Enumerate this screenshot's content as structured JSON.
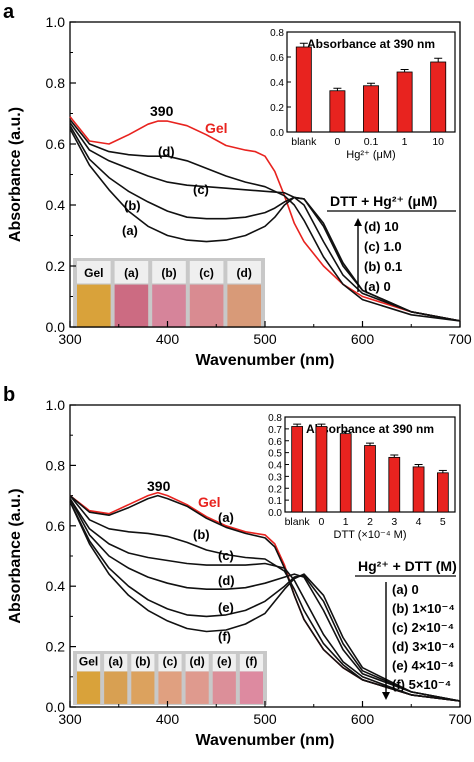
{
  "panels": [
    {
      "label": "a",
      "xlabel": "Wavenumber (nm)",
      "ylabel": "Absorbance (a.u.)",
      "xticks": [
        "300",
        "400",
        "500",
        "600",
        "700"
      ],
      "yticks": [
        "0.0",
        "0.2",
        "0.4",
        "0.6",
        "0.8",
        "1.0"
      ],
      "peak_label": "390",
      "gel_label": "Gel",
      "legend_title": "DTT + Hg²⁺ (μM)",
      "legend_entries": [
        "(d) 10",
        "(c) 1.0",
        "(b) 0.1",
        "(a) 0"
      ],
      "photo_labels": [
        "Gel",
        "(a)",
        "(b)",
        "(c)",
        "(d)"
      ],
      "curve_labels": [
        "(a)",
        "(b)",
        "(c)",
        "(d)"
      ],
      "inset": {
        "title": "Absorbance at 390 nm",
        "xlabel": "Hg²⁺ (μM)",
        "categories": [
          "blank",
          "0",
          "0.1",
          "1",
          "10"
        ],
        "yticks": [
          "0.0",
          "0.2",
          "0.4",
          "0.6",
          "0.8"
        ]
      }
    },
    {
      "label": "b",
      "xlabel": "Wavenumber (nm)",
      "ylabel": "Absorbance (a.u.)",
      "xticks": [
        "300",
        "400",
        "500",
        "600",
        "700"
      ],
      "yticks": [
        "0.0",
        "0.2",
        "0.4",
        "0.6",
        "0.8",
        "1.0"
      ],
      "peak_label": "390",
      "gel_label": "Gel",
      "legend_title": "Hg²⁺ + DTT (M)",
      "legend_entries": [
        "(a) 0",
        "(b) 1×10⁻⁴",
        "(c) 2×10⁻⁴",
        "(d) 3×10⁻⁴",
        "(e) 4×10⁻⁴",
        "(f) 5×10⁻⁴"
      ],
      "photo_labels": [
        "Gel",
        "(a)",
        "(b)",
        "(c)",
        "(d)",
        "(e)",
        "(f)"
      ],
      "curve_labels": [
        "(a)",
        "(b)",
        "(c)",
        "(d)",
        "(e)",
        "(f)"
      ],
      "inset": {
        "title": "Absorbance at 390 nm",
        "xlabel": "DTT (×10⁻⁴ M)",
        "categories": [
          "blank",
          "0",
          "1",
          "2",
          "3",
          "4",
          "5"
        ],
        "yticks": [
          "0.0",
          "0.1",
          "0.2",
          "0.3",
          "0.4",
          "0.5",
          "0.6",
          "0.7",
          "0.8"
        ]
      }
    }
  ],
  "colors": {
    "gel_curve": "#e8231f",
    "curves": "#111111",
    "bars": "#e8231f",
    "photo_gel": "#d9a23a",
    "photo_samples_a": [
      "#cc6b82",
      "#d6849a",
      "#d98b91",
      "#d89a78"
    ],
    "photo_samples_b": [
      "#d8a052",
      "#dca25e",
      "#e0a080",
      "#df9a8e",
      "#dc8f99",
      "#dd8aa0"
    ]
  },
  "chart_data": [
    {
      "type": "line",
      "title": "",
      "xlabel": "Wavenumber (nm)",
      "ylabel": "Absorbance (a.u.)",
      "xlim": [
        300,
        700
      ],
      "ylim": [
        0,
        1.0
      ],
      "series": [
        {
          "name": "Gel",
          "x": [
            300,
            320,
            340,
            360,
            380,
            390,
            400,
            420,
            440,
            460,
            480,
            490,
            500,
            510,
            520,
            530,
            540,
            560,
            580,
            600,
            650,
            700
          ],
          "y": [
            0.69,
            0.61,
            0.6,
            0.63,
            0.665,
            0.675,
            0.675,
            0.66,
            0.63,
            0.595,
            0.58,
            0.575,
            0.56,
            0.51,
            0.43,
            0.34,
            0.28,
            0.2,
            0.14,
            0.1,
            0.05,
            0.02
          ]
        },
        {
          "name": "(d)",
          "x": [
            300,
            320,
            340,
            360,
            380,
            400,
            420,
            440,
            460,
            480,
            500,
            520,
            530,
            540,
            560,
            580,
            600,
            650,
            700
          ],
          "y": [
            0.68,
            0.6,
            0.575,
            0.565,
            0.56,
            0.56,
            0.545,
            0.52,
            0.495,
            0.475,
            0.46,
            0.43,
            0.4,
            0.35,
            0.23,
            0.14,
            0.09,
            0.04,
            0.02
          ]
        },
        {
          "name": "(c)",
          "x": [
            300,
            320,
            340,
            360,
            380,
            400,
            420,
            440,
            460,
            480,
            500,
            520,
            530,
            540,
            560,
            580,
            600,
            650,
            700
          ],
          "y": [
            0.67,
            0.58,
            0.545,
            0.52,
            0.495,
            0.475,
            0.465,
            0.46,
            0.455,
            0.45,
            0.445,
            0.44,
            0.425,
            0.4,
            0.28,
            0.17,
            0.11,
            0.05,
            0.02
          ]
        },
        {
          "name": "(b)",
          "x": [
            300,
            320,
            340,
            360,
            380,
            400,
            420,
            440,
            460,
            480,
            500,
            510,
            520,
            530,
            540,
            560,
            580,
            600,
            650,
            700
          ],
          "y": [
            0.66,
            0.55,
            0.49,
            0.445,
            0.41,
            0.38,
            0.36,
            0.355,
            0.355,
            0.36,
            0.375,
            0.39,
            0.41,
            0.425,
            0.42,
            0.33,
            0.2,
            0.12,
            0.05,
            0.02
          ]
        },
        {
          "name": "(a)",
          "x": [
            300,
            320,
            340,
            360,
            380,
            400,
            420,
            440,
            460,
            480,
            500,
            510,
            520,
            530,
            540,
            560,
            580,
            600,
            650,
            700
          ],
          "y": [
            0.65,
            0.53,
            0.45,
            0.38,
            0.33,
            0.3,
            0.285,
            0.28,
            0.285,
            0.3,
            0.33,
            0.36,
            0.4,
            0.425,
            0.42,
            0.34,
            0.21,
            0.12,
            0.05,
            0.02
          ]
        }
      ],
      "inset": {
        "type": "bar",
        "title": "Absorbance at 390 nm",
        "xlabel": "Hg²⁺ (μM)",
        "categories": [
          "blank",
          "0",
          "0.1",
          "1",
          "10"
        ],
        "values": [
          0.68,
          0.33,
          0.37,
          0.48,
          0.56
        ],
        "errors": [
          0.03,
          0.02,
          0.02,
          0.02,
          0.03
        ],
        "ylim": [
          0,
          0.8
        ]
      }
    },
    {
      "type": "line",
      "title": "",
      "xlabel": "Wavenumber (nm)",
      "ylabel": "Absorbance (a.u.)",
      "xlim": [
        300,
        700
      ],
      "ylim": [
        0,
        1.0
      ],
      "series": [
        {
          "name": "Gel",
          "x": [
            300,
            320,
            340,
            360,
            380,
            390,
            400,
            420,
            440,
            460,
            480,
            500,
            510,
            520,
            530,
            540,
            560,
            580,
            600,
            650,
            700
          ],
          "y": [
            0.7,
            0.65,
            0.64,
            0.67,
            0.7,
            0.71,
            0.7,
            0.67,
            0.63,
            0.6,
            0.58,
            0.57,
            0.54,
            0.47,
            0.37,
            0.29,
            0.19,
            0.13,
            0.09,
            0.04,
            0.02
          ]
        },
        {
          "name": "(a)",
          "x": [
            300,
            320,
            340,
            360,
            380,
            390,
            400,
            420,
            440,
            460,
            480,
            500,
            510,
            520,
            530,
            540,
            560,
            580,
            600,
            650,
            700
          ],
          "y": [
            0.7,
            0.645,
            0.635,
            0.66,
            0.69,
            0.7,
            0.69,
            0.665,
            0.625,
            0.595,
            0.575,
            0.56,
            0.53,
            0.46,
            0.37,
            0.29,
            0.19,
            0.13,
            0.09,
            0.04,
            0.02
          ]
        },
        {
          "name": "(b)",
          "x": [
            300,
            320,
            340,
            360,
            380,
            400,
            420,
            440,
            460,
            480,
            500,
            520,
            530,
            540,
            560,
            580,
            600,
            650,
            700
          ],
          "y": [
            0.7,
            0.62,
            0.59,
            0.58,
            0.575,
            0.565,
            0.545,
            0.52,
            0.505,
            0.495,
            0.49,
            0.45,
            0.39,
            0.32,
            0.21,
            0.14,
            0.09,
            0.04,
            0.02
          ]
        },
        {
          "name": "(c)",
          "x": [
            300,
            320,
            340,
            360,
            380,
            400,
            420,
            440,
            460,
            480,
            500,
            520,
            530,
            540,
            560,
            580,
            600,
            650,
            700
          ],
          "y": [
            0.69,
            0.59,
            0.54,
            0.51,
            0.495,
            0.485,
            0.475,
            0.47,
            0.47,
            0.47,
            0.475,
            0.46,
            0.42,
            0.36,
            0.24,
            0.15,
            0.1,
            0.04,
            0.02
          ]
        },
        {
          "name": "(d)",
          "x": [
            300,
            320,
            340,
            360,
            380,
            400,
            420,
            440,
            460,
            480,
            500,
            520,
            530,
            540,
            560,
            580,
            600,
            650,
            700
          ],
          "y": [
            0.69,
            0.57,
            0.5,
            0.46,
            0.43,
            0.41,
            0.395,
            0.39,
            0.39,
            0.395,
            0.41,
            0.43,
            0.44,
            0.43,
            0.32,
            0.19,
            0.11,
            0.05,
            0.02
          ]
        },
        {
          "name": "(e)",
          "x": [
            300,
            320,
            340,
            360,
            380,
            400,
            420,
            440,
            460,
            480,
            500,
            520,
            530,
            540,
            560,
            580,
            600,
            650,
            700
          ],
          "y": [
            0.68,
            0.55,
            0.46,
            0.4,
            0.355,
            0.325,
            0.305,
            0.3,
            0.305,
            0.32,
            0.35,
            0.4,
            0.43,
            0.435,
            0.35,
            0.21,
            0.12,
            0.05,
            0.02
          ]
        },
        {
          "name": "(f)",
          "x": [
            300,
            320,
            340,
            360,
            380,
            400,
            420,
            440,
            460,
            480,
            500,
            510,
            520,
            530,
            540,
            560,
            580,
            600,
            650,
            700
          ],
          "y": [
            0.68,
            0.54,
            0.44,
            0.37,
            0.32,
            0.285,
            0.26,
            0.25,
            0.255,
            0.275,
            0.31,
            0.35,
            0.39,
            0.425,
            0.44,
            0.37,
            0.23,
            0.13,
            0.05,
            0.02
          ]
        }
      ],
      "inset": {
        "type": "bar",
        "title": "Absorbance at 390 nm",
        "xlabel": "DTT (×10⁻⁴ M)",
        "categories": [
          "blank",
          "0",
          "1",
          "2",
          "3",
          "4",
          "5"
        ],
        "values": [
          0.72,
          0.72,
          0.66,
          0.56,
          0.46,
          0.38,
          0.33
        ],
        "errors": [
          0.02,
          0.02,
          0.02,
          0.02,
          0.02,
          0.02,
          0.02
        ],
        "ylim": [
          0,
          0.8
        ]
      }
    }
  ]
}
